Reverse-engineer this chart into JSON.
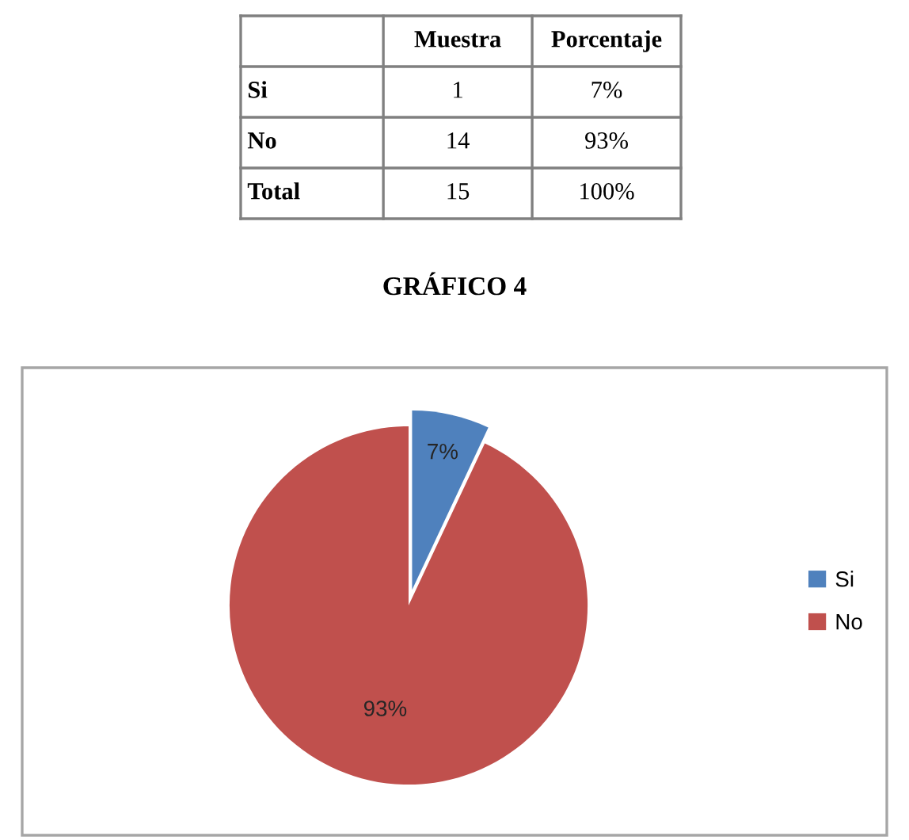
{
  "chart_data": [
    {
      "type": "other",
      "categories": [
        "Muestra",
        "Porcentaje"
      ],
      "y_categories": [
        "Si",
        "No",
        "Total"
      ],
      "cell_labels": [
        [
          "1",
          "7%"
        ],
        [
          "14",
          "93%"
        ],
        [
          "15",
          "100%"
        ]
      ]
    },
    {
      "type": "pie",
      "title": "GRÁFICO 4",
      "categories": [
        "Si",
        "No"
      ],
      "values": [
        7,
        93
      ],
      "colors": [
        "#4f81bd",
        "#c0504d"
      ],
      "value_labels": [
        "7%",
        "93%"
      ],
      "legend": "right"
    }
  ]
}
